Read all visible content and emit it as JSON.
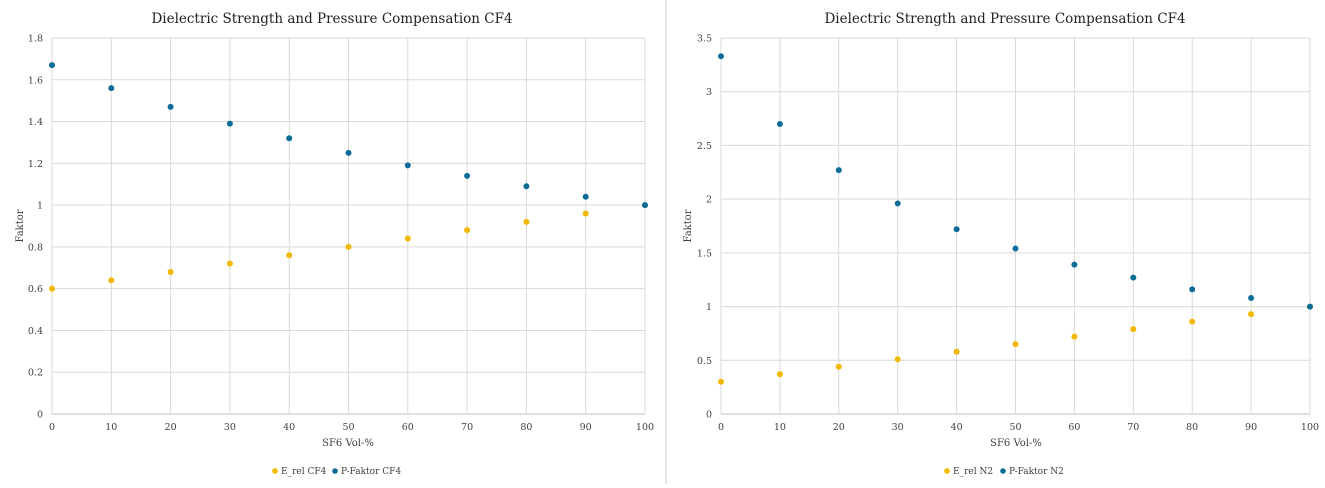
{
  "colors": {
    "e_rel": "#f2b800",
    "p_faktor": "#0b6d98",
    "grid": "#d9d9d9"
  },
  "chart_data": [
    {
      "type": "scatter",
      "title": "Dielectric Strength and Pressure Compensation CF4",
      "xlabel": "SF6 Vol-%",
      "ylabel": "Faktor",
      "xlim": [
        0,
        100
      ],
      "ylim": [
        0,
        1.8
      ],
      "xticks": [
        0,
        10,
        20,
        30,
        40,
        50,
        60,
        70,
        80,
        90,
        100
      ],
      "yticks": [
        0,
        0.2,
        0.4,
        0.6,
        0.8,
        1,
        1.2,
        1.4,
        1.6,
        1.8
      ],
      "grid": true,
      "legend_position": "bottom-center",
      "x": [
        0,
        10,
        20,
        30,
        40,
        50,
        60,
        70,
        80,
        90,
        100
      ],
      "series": [
        {
          "name": "E_rel CF4",
          "values": [
            0.6,
            0.64,
            0.68,
            0.72,
            0.76,
            0.8,
            0.84,
            0.88,
            0.92,
            0.96,
            1.0
          ]
        },
        {
          "name": "P-Faktor CF4",
          "values": [
            1.67,
            1.56,
            1.47,
            1.39,
            1.32,
            1.25,
            1.19,
            1.14,
            1.09,
            1.04,
            1.0
          ]
        }
      ]
    },
    {
      "type": "scatter",
      "title": "Dielectric Strength and Pressure Compensation CF4",
      "xlabel": "SF6 Vol-%",
      "ylabel": "Faktor",
      "xlim": [
        0,
        100
      ],
      "ylim": [
        0,
        3.5
      ],
      "xticks": [
        0,
        10,
        20,
        30,
        40,
        50,
        60,
        70,
        80,
        90,
        100
      ],
      "yticks": [
        0,
        0.5,
        1,
        1.5,
        2,
        2.5,
        3,
        3.5
      ],
      "grid": true,
      "legend_position": "bottom-center",
      "x": [
        0,
        10,
        20,
        30,
        40,
        50,
        60,
        70,
        80,
        90,
        100
      ],
      "series": [
        {
          "name": "E_rel N2",
          "values": [
            0.3,
            0.37,
            0.44,
            0.51,
            0.58,
            0.65,
            0.72,
            0.79,
            0.86,
            0.93,
            1.0
          ]
        },
        {
          "name": "P-Faktor N2",
          "values": [
            3.33,
            2.7,
            2.27,
            1.96,
            1.72,
            1.54,
            1.39,
            1.27,
            1.16,
            1.08,
            1.0
          ]
        }
      ]
    }
  ]
}
